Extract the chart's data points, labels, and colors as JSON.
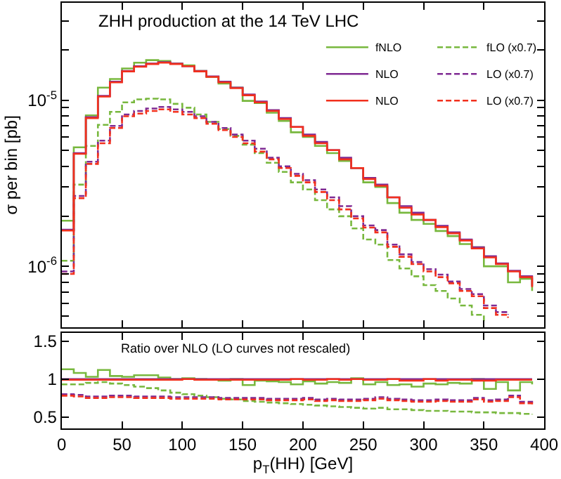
{
  "chart_data": [
    {
      "type": "step",
      "title": "ZHH production at the 14 TeV LHC",
      "ylabel": "σ per bin [pb]",
      "log": true,
      "legend": "top right",
      "tick_labels": "y",
      "x": [
        0,
        10,
        20,
        30,
        40,
        50,
        60,
        70,
        80,
        90,
        100,
        110,
        120,
        130,
        140,
        150,
        160,
        170,
        180,
        190,
        200,
        210,
        220,
        230,
        240,
        250,
        260,
        270,
        280,
        290,
        300,
        310,
        320,
        330,
        340,
        350,
        360,
        370,
        380,
        390
      ],
      "xlim": [
        0,
        400
      ],
      "xticks": [
        {
          "value": 0,
          "label": null
        },
        {
          "value": 50,
          "label": null
        },
        {
          "value": 100,
          "label": null
        },
        {
          "value": 150,
          "label": null
        },
        {
          "value": 200,
          "label": null
        },
        {
          "value": 250,
          "label": null
        },
        {
          "value": 300,
          "label": null
        },
        {
          "value": 350,
          "label": null
        },
        {
          "value": 400,
          "label": null
        }
      ],
      "ylim": [
        4.3e-07,
        3.85e-05
      ],
      "yticks": [
        {
          "value": 5e-07,
          "label": null
        },
        {
          "value": 6e-07,
          "label": null
        },
        {
          "value": 7e-07,
          "label": null
        },
        {
          "value": 8e-07,
          "label": null
        },
        {
          "value": 9e-07,
          "label": null
        },
        {
          "value": 1e-06,
          "label": "10$^{-6}$"
        },
        {
          "value": 2e-06,
          "label": null
        },
        {
          "value": 3e-06,
          "label": null
        },
        {
          "value": 4e-06,
          "label": null
        },
        {
          "value": 5e-06,
          "label": null
        },
        {
          "value": 6e-06,
          "label": null
        },
        {
          "value": 7e-06,
          "label": null
        },
        {
          "value": 8e-06,
          "label": null
        },
        {
          "value": 9e-06,
          "label": null
        },
        {
          "value": 1e-05,
          "label": "10$^{-5}$"
        },
        {
          "value": 2e-05,
          "label": null
        },
        {
          "value": 3e-05,
          "label": null
        }
      ],
      "series": [
        {
          "name": "fNLO",
          "color": "#78b83e",
          "line_style": "solid",
          "values": [
            1.88e-06,
            5.2e-06,
            8.1e-06,
            1.19e-05,
            1.34e-05,
            1.55e-05,
            1.68e-05,
            1.74e-05,
            1.72e-05,
            1.66e-05,
            1.62e-05,
            1.5e-05,
            1.38e-05,
            1.26e-05,
            1.19e-05,
            9.9e-06,
            9.6e-06,
            8.4e-06,
            7.5e-06,
            6.4e-06,
            6e-06,
            5.3e-06,
            4.8e-06,
            4.3e-06,
            3.9e-06,
            3.2e-06,
            3e-06,
            2.4e-06,
            2.1e-06,
            1.9e-06,
            1.8e-06,
            1.63e-06,
            1.52e-06,
            1.36e-06,
            1.3e-06,
            1e-06,
            1e-06,
            8e-07,
            8.4e-07,
            7.1e-07
          ]
        },
        {
          "name": "fLO (x0.7)",
          "color": "#78b83e",
          "line_style": "dashed",
          "values": [
            1.08e-06,
            3.1e-06,
            5.3e-06,
            7.1e-06,
            8.5e-06,
            9.7e-06,
            1.01e-05,
            1.02e-05,
            1.01e-05,
            9.5e-06,
            9e-06,
            8.2e-06,
            7.4e-06,
            6.7e-06,
            6.1e-06,
            5.4e-06,
            4.8e-06,
            4.2e-06,
            3.7e-06,
            3.2e-06,
            2.9e-06,
            2.5e-06,
            2.2e-06,
            2e-06,
            1.69e-06,
            1.45e-06,
            1.35e-06,
            1.09e-06,
            9.7e-07,
            8.7e-07,
            7.7e-07,
            7.1e-07,
            6.4e-07,
            5.8e-07,
            5.1e-07,
            4.5e-07,
            null,
            null,
            null,
            null
          ]
        },
        {
          "name": "NLO",
          "color": "#7f2a93",
          "line_style": "solid",
          "values": [
            1.66e-06,
            4.8e-06,
            7.9e-06,
            1.06e-05,
            1.29e-05,
            1.5e-05,
            1.6e-05,
            1.66e-05,
            1.69e-05,
            1.66e-05,
            1.6e-05,
            1.5e-05,
            1.39e-05,
            1.29e-05,
            1.19e-05,
            1.08e-05,
            9.8e-06,
            8.7e-06,
            7.8e-06,
            6.9e-06,
            6.2e-06,
            5.6e-06,
            5e-06,
            4.5e-06,
            3.9e-06,
            3.4e-06,
            3.1e-06,
            2.6e-06,
            2.3e-06,
            2.1e-06,
            1.9e-06,
            1.75e-06,
            1.6e-06,
            1.45e-06,
            1.3e-06,
            1.15e-06,
            1.04e-06,
            9.4e-07,
            8.7e-07,
            7.6e-07
          ]
        },
        {
          "name": "LO (x0.7)",
          "color": "#7f2a93",
          "line_style": "dashed",
          "values": [
            9.3e-07,
            2.65e-06,
            4.26e-06,
            5.7e-06,
            7e-06,
            8.2e-06,
            8.6e-06,
            8.9e-06,
            9.1e-06,
            8.8e-06,
            8.5e-06,
            8e-06,
            7.4e-06,
            6.8e-06,
            6.2e-06,
            5.7e-06,
            5.1e-06,
            4.5e-06,
            4e-06,
            3.6e-06,
            3.3e-06,
            2.9e-06,
            2.6e-06,
            2.3e-06,
            2e-06,
            1.76e-06,
            1.65e-06,
            1.35e-06,
            1.18e-06,
            1.06e-06,
            9.6e-07,
            8.9e-07,
            8.1e-07,
            7.3e-07,
            6.8e-07,
            5.8e-07,
            5.3e-07,
            5.1e-07,
            null,
            null
          ]
        },
        {
          "name": "NLO",
          "color": "#f2301d",
          "line_style": "solid",
          "values": [
            1.64e-06,
            4.75e-06,
            7.8e-06,
            1.05e-05,
            1.28e-05,
            1.49e-05,
            1.59e-05,
            1.65e-05,
            1.68e-05,
            1.65e-05,
            1.6e-05,
            1.49e-05,
            1.38e-05,
            1.28e-05,
            1.18e-05,
            1.07e-05,
            9.7e-06,
            8.6e-06,
            7.7e-06,
            6.9e-06,
            6.1e-06,
            5.5e-06,
            5e-06,
            4.4e-06,
            3.9e-06,
            3.35e-06,
            3.05e-06,
            2.6e-06,
            2.25e-06,
            2.05e-06,
            1.9e-06,
            1.72e-06,
            1.58e-06,
            1.43e-06,
            1.28e-06,
            1.13e-06,
            1.03e-06,
            9.3e-07,
            8.6e-07,
            7.5e-07
          ]
        },
        {
          "name": "LO (x0.7)",
          "color": "#f2301d",
          "line_style": "dashed",
          "values": [
            9e-07,
            2.57e-06,
            4.13e-06,
            5.5e-06,
            6.8e-06,
            8e-06,
            8.3e-06,
            8.6e-06,
            8.8e-06,
            8.5e-06,
            8.2e-06,
            7.8e-06,
            7.2e-06,
            6.6e-06,
            6e-06,
            5.5e-06,
            4.9e-06,
            4.4e-06,
            3.9e-06,
            3.5e-06,
            3.2e-06,
            2.8e-06,
            2.5e-06,
            2.2e-06,
            1.94e-06,
            1.71e-06,
            1.6e-06,
            1.31e-06,
            1.14e-06,
            1.03e-06,
            9.3e-07,
            8.6e-07,
            7.9e-07,
            7.1e-07,
            6.6e-07,
            5.6e-07,
            5.1e-07,
            4.9e-07,
            null,
            null
          ]
        }
      ]
    },
    {
      "type": "step",
      "title": "Ratio over NLO (LO curves not rescaled)",
      "xlabel": "p$_{T}$(HH) [GeV]",
      "x": [
        0,
        10,
        20,
        30,
        40,
        50,
        60,
        70,
        80,
        90,
        100,
        110,
        120,
        130,
        140,
        150,
        160,
        170,
        180,
        190,
        200,
        210,
        220,
        230,
        240,
        250,
        260,
        270,
        280,
        290,
        300,
        310,
        320,
        330,
        340,
        350,
        360,
        370,
        380,
        390
      ],
      "xlim": [
        0,
        400
      ],
      "xticks": [
        0,
        50,
        100,
        150,
        200,
        250,
        300,
        350,
        400
      ],
      "ylim": [
        0.35,
        1.61
      ],
      "yticks": [
        0.5,
        1,
        1.5
      ],
      "series": [
        {
          "color": "#78b83e",
          "line_style": "solid",
          "values": [
            1.13,
            1.08,
            1.03,
            1.12,
            1.04,
            1.03,
            1.05,
            1.05,
            1.02,
            1.0,
            1.01,
            1.0,
            0.99,
            0.98,
            1.0,
            0.92,
            0.98,
            0.97,
            0.96,
            0.93,
            0.97,
            0.94,
            0.96,
            0.95,
            1.01,
            0.93,
            0.96,
            0.92,
            0.93,
            0.9,
            0.94,
            0.93,
            0.95,
            0.94,
            1.0,
            0.87,
            0.96,
            0.85,
            0.96,
            0.93
          ]
        },
        {
          "color": "#78b83e",
          "line_style": "dashed",
          "values": [
            0.93,
            0.93,
            0.95,
            0.96,
            0.94,
            0.92,
            0.9,
            0.88,
            0.85,
            0.82,
            0.8,
            0.78,
            0.76,
            0.74,
            0.73,
            0.71,
            0.7,
            0.69,
            0.68,
            0.67,
            0.66,
            0.65,
            0.64,
            0.63,
            0.62,
            0.61,
            0.62,
            0.6,
            0.6,
            0.59,
            0.58,
            0.58,
            0.57,
            0.57,
            0.56,
            0.56,
            0.55,
            0.55,
            0.54,
            0.53
          ]
        },
        {
          "color": "#7f2a93",
          "line_style": "solid",
          "values": [
            1,
            1,
            1,
            1,
            1,
            1,
            1,
            1,
            1,
            1,
            1,
            1,
            1,
            1,
            1,
            1,
            1,
            1,
            1,
            1,
            1,
            1,
            1,
            1,
            1,
            1,
            1,
            1,
            1,
            1,
            1,
            1,
            1,
            1,
            1,
            1,
            1,
            1,
            1,
            1
          ]
        },
        {
          "color": "#7f2a93",
          "line_style": "dashed",
          "values": [
            0.8,
            0.79,
            0.77,
            0.77,
            0.78,
            0.78,
            0.77,
            0.77,
            0.77,
            0.76,
            0.76,
            0.76,
            0.76,
            0.75,
            0.75,
            0.75,
            0.75,
            0.74,
            0.74,
            0.74,
            0.75,
            0.73,
            0.74,
            0.73,
            0.73,
            0.74,
            0.76,
            0.74,
            0.73,
            0.72,
            0.72,
            0.73,
            0.72,
            0.72,
            0.75,
            0.72,
            0.73,
            0.78,
            0.7,
            0.68
          ]
        },
        {
          "color": "#f2301d",
          "line_style": "solid",
          "values": [
            0.99,
            0.99,
            0.99,
            0.99,
            0.99,
            0.99,
            0.99,
            0.99,
            0.99,
            0.99,
            1.0,
            0.99,
            0.99,
            0.99,
            0.99,
            0.99,
            0.99,
            0.99,
            0.99,
            1.0,
            0.99,
            0.99,
            1.0,
            0.99,
            1.0,
            0.99,
            0.99,
            1.0,
            0.98,
            0.98,
            1.0,
            0.98,
            0.99,
            0.99,
            0.98,
            0.98,
            0.99,
            0.99,
            0.99,
            0.99
          ]
        },
        {
          "color": "#f2301d",
          "line_style": "dashed",
          "values": [
            0.78,
            0.77,
            0.75,
            0.75,
            0.76,
            0.76,
            0.75,
            0.75,
            0.75,
            0.74,
            0.74,
            0.74,
            0.74,
            0.73,
            0.73,
            0.73,
            0.73,
            0.72,
            0.72,
            0.72,
            0.73,
            0.71,
            0.72,
            0.71,
            0.71,
            0.72,
            0.74,
            0.72,
            0.71,
            0.7,
            0.7,
            0.71,
            0.7,
            0.7,
            0.73,
            0.7,
            0.71,
            0.76,
            0.68,
            0.66
          ]
        }
      ]
    }
  ]
}
